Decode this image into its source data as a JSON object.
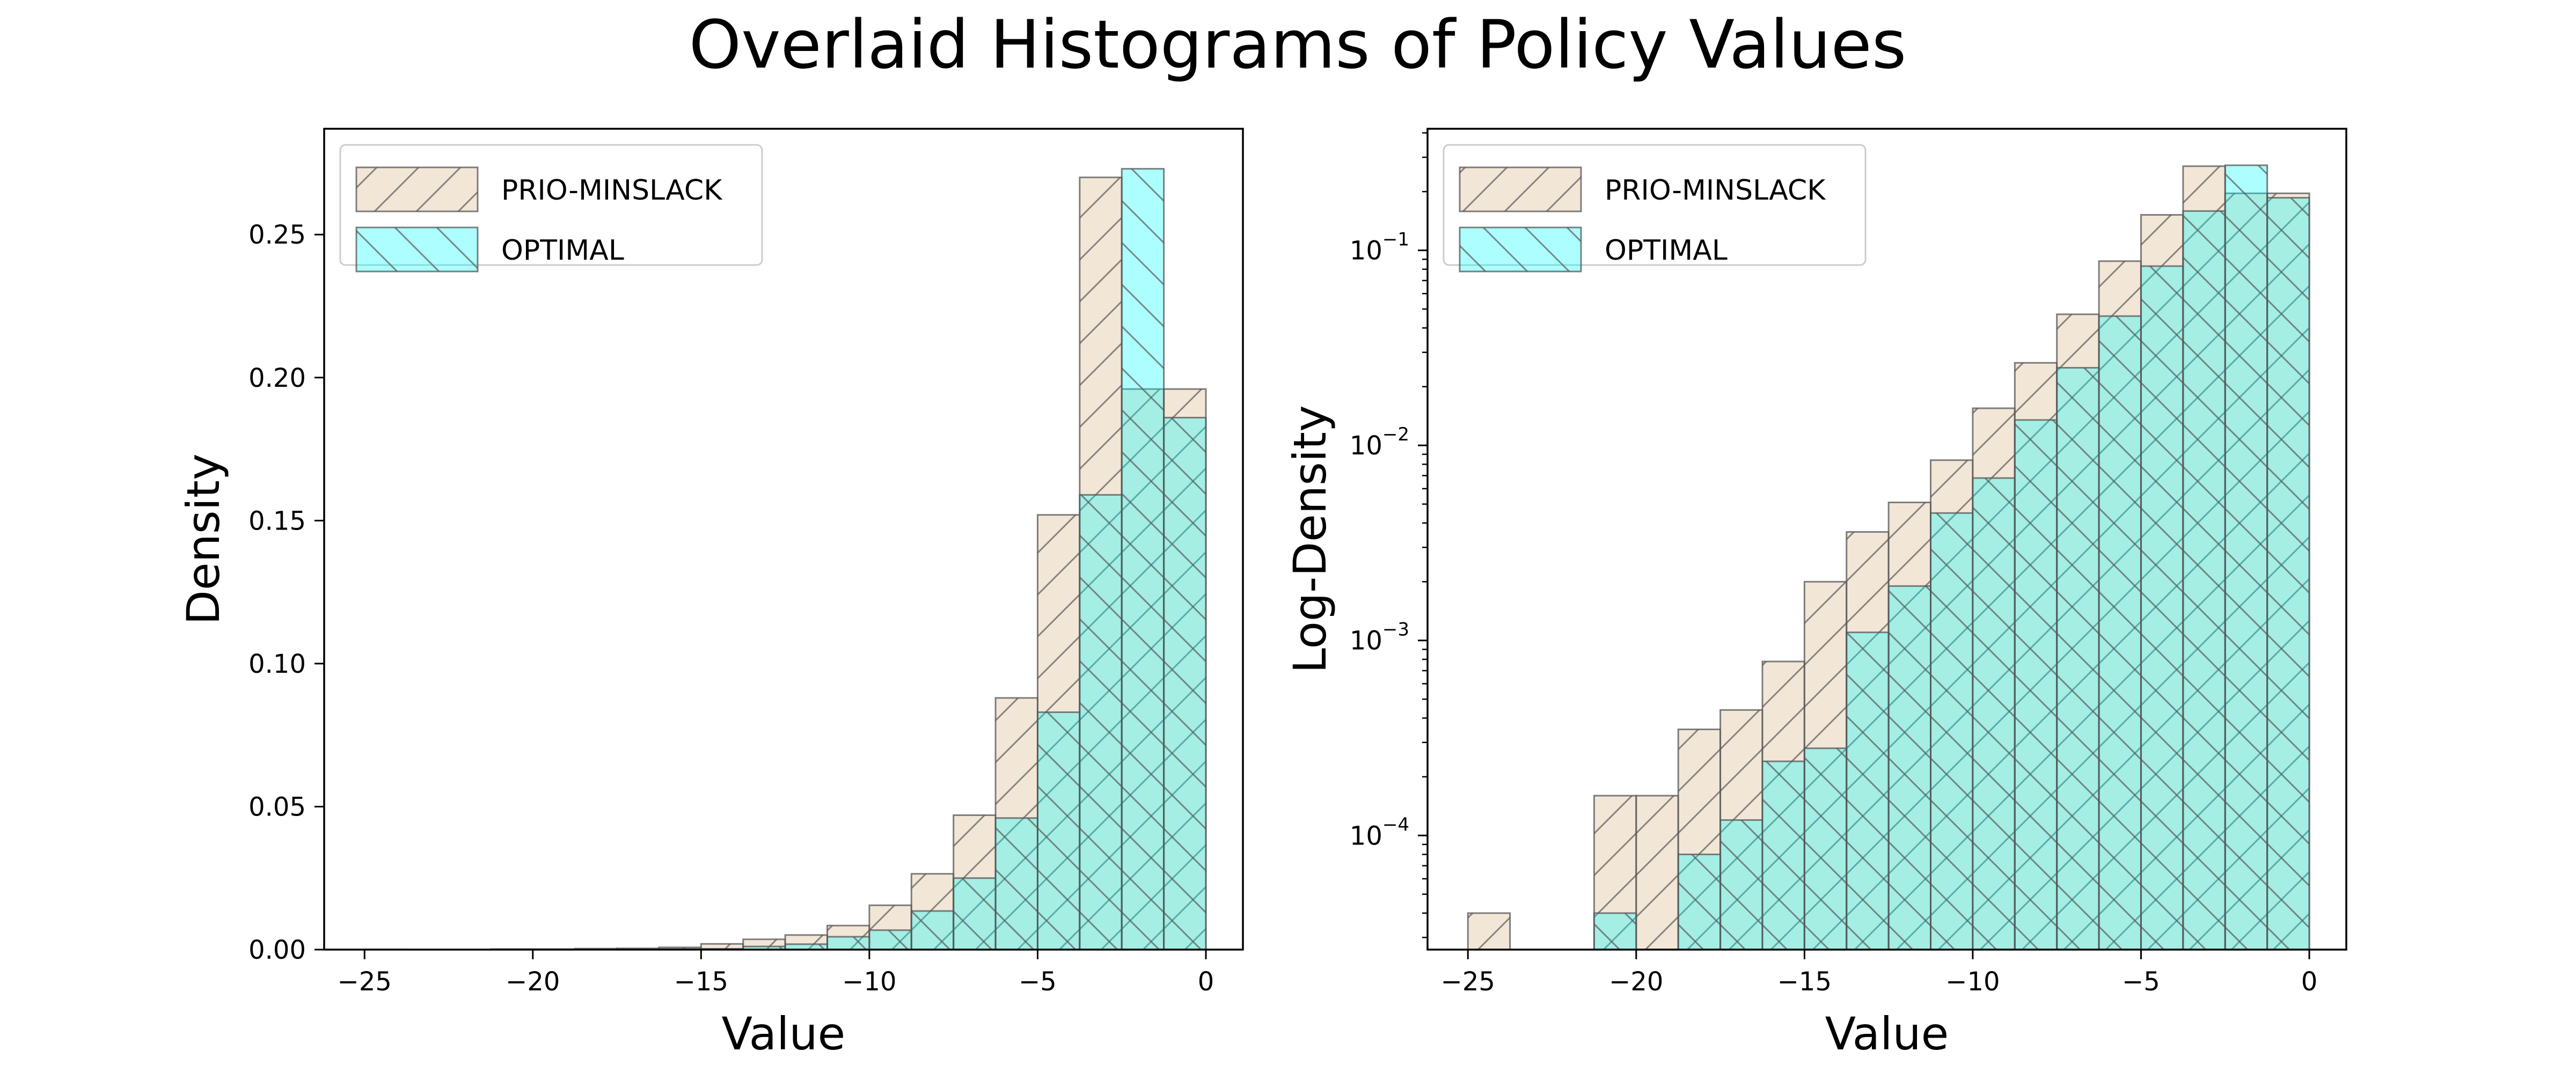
{
  "figure": {
    "title": "Overlaid Histograms of Policy Values"
  },
  "colors": {
    "prio": "#e8d2b7",
    "optimal": "#00ffff",
    "edge": "#555555",
    "hatch": "#5a5a5a"
  },
  "chart_data": [
    {
      "type": "bar",
      "xlabel": "Value",
      "ylabel": "Density",
      "yscale": "linear",
      "xlim": [
        -26.2,
        1.1
      ],
      "ylim": [
        0,
        0.287
      ],
      "xticks": [
        -25,
        -20,
        -15,
        -10,
        -5,
        0
      ],
      "xtick_labels": [
        "−25",
        "−20",
        "−15",
        "−10",
        "−5",
        "0"
      ],
      "yticks": [
        0,
        0.05,
        0.1,
        0.15,
        0.2,
        0.25
      ],
      "ytick_labels": [
        "0.00",
        "0.05",
        "0.10",
        "0.15",
        "0.20",
        "0.25"
      ],
      "legend": {
        "location": "top-left",
        "entries": [
          "PRIO-MINSLACK",
          "OPTIMAL"
        ]
      },
      "grid": false,
      "series": [
        {
          "name": "PRIO-MINSLACK",
          "bin_edges": [
            -25.0,
            -23.75,
            -22.5,
            -21.25,
            -20.0,
            -18.75,
            -17.5,
            -16.25,
            -15.0,
            -13.75,
            -12.5,
            -11.25,
            -10.0,
            -8.75,
            -7.5,
            -6.25,
            -5.0,
            -3.75,
            -2.5,
            -1.25,
            0.0
          ],
          "values": [
            4e-05,
            0,
            0,
            0.00016,
            0.00016,
            0.00035,
            0.00044,
            0.00078,
            0.002,
            0.0036,
            0.0051,
            0.0084,
            0.0155,
            0.0265,
            0.047,
            0.088,
            0.152,
            0.27,
            0.196,
            0.196
          ]
        },
        {
          "name": "OPTIMAL",
          "bin_edges": [
            -25.0,
            -23.75,
            -22.5,
            -21.25,
            -20.0,
            -18.75,
            -17.5,
            -16.25,
            -15.0,
            -13.75,
            -12.5,
            -11.25,
            -10.0,
            -8.75,
            -7.5,
            -6.25,
            -5.0,
            -3.75,
            -2.5,
            -1.25,
            0.0
          ],
          "values": [
            0,
            0,
            0,
            4e-05,
            0,
            8e-05,
            0.00012,
            0.00024,
            0.00028,
            0.0011,
            0.0019,
            0.0045,
            0.0068,
            0.0135,
            0.025,
            0.046,
            0.083,
            0.159,
            0.273,
            0.186
          ]
        }
      ]
    },
    {
      "type": "bar",
      "xlabel": "Value",
      "ylabel": "Log-Density",
      "yscale": "log",
      "xlim": [
        -26.2,
        1.1
      ],
      "ylim": [
        2.6e-05,
        0.42
      ],
      "xticks": [
        -25,
        -20,
        -15,
        -10,
        -5,
        0
      ],
      "xtick_labels": [
        "−25",
        "−20",
        "−15",
        "−10",
        "−5",
        "0"
      ],
      "yticks": [
        0.0001,
        0.001,
        0.01,
        0.1
      ],
      "ytick_labels": [
        [
          "10",
          "−4"
        ],
        [
          "10",
          "−3"
        ],
        [
          "10",
          "−2"
        ],
        [
          "10",
          "−1"
        ]
      ],
      "legend": {
        "location": "top-left",
        "entries": [
          "PRIO-MINSLACK",
          "OPTIMAL"
        ]
      },
      "grid": false,
      "series": [
        {
          "name": "PRIO-MINSLACK",
          "bin_edges": [
            -25.0,
            -23.75,
            -22.5,
            -21.25,
            -20.0,
            -18.75,
            -17.5,
            -16.25,
            -15.0,
            -13.75,
            -12.5,
            -11.25,
            -10.0,
            -8.75,
            -7.5,
            -6.25,
            -5.0,
            -3.75,
            -2.5,
            -1.25,
            0.0
          ],
          "values": [
            4e-05,
            0,
            0,
            0.00016,
            0.00016,
            0.00035,
            0.00044,
            0.00078,
            0.002,
            0.0036,
            0.0051,
            0.0084,
            0.0155,
            0.0265,
            0.047,
            0.088,
            0.152,
            0.27,
            0.196,
            0.196
          ]
        },
        {
          "name": "OPTIMAL",
          "bin_edges": [
            -25.0,
            -23.75,
            -22.5,
            -21.25,
            -20.0,
            -18.75,
            -17.5,
            -16.25,
            -15.0,
            -13.75,
            -12.5,
            -11.25,
            -10.0,
            -8.75,
            -7.5,
            -6.25,
            -5.0,
            -3.75,
            -2.5,
            -1.25,
            0.0
          ],
          "values": [
            0,
            0,
            0,
            4e-05,
            0,
            8e-05,
            0.00012,
            0.00024,
            0.00028,
            0.0011,
            0.0019,
            0.0045,
            0.0068,
            0.0135,
            0.025,
            0.046,
            0.083,
            0.159,
            0.273,
            0.186
          ]
        }
      ]
    }
  ]
}
